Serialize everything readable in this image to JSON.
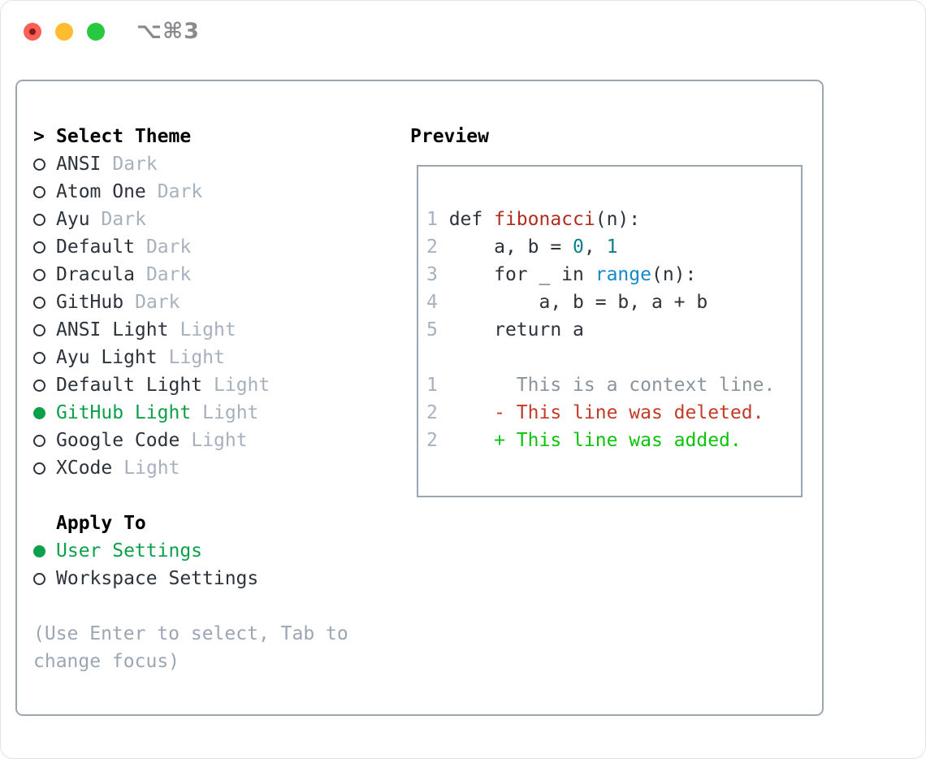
{
  "titlebar": {
    "shortcut": "⌥⌘3",
    "traffic_colors": {
      "red": "#ff5f57",
      "yellow": "#febc2e",
      "green": "#28c840"
    }
  },
  "theme_panel": {
    "title_prefix": ">",
    "title": "Select Theme",
    "themes": [
      {
        "name": "ANSI",
        "variant": "Dark",
        "selected": false
      },
      {
        "name": "Atom One",
        "variant": "Dark",
        "selected": false
      },
      {
        "name": "Ayu",
        "variant": "Dark",
        "selected": false
      },
      {
        "name": "Default",
        "variant": "Dark",
        "selected": false
      },
      {
        "name": "Dracula",
        "variant": "Dark",
        "selected": false
      },
      {
        "name": "GitHub",
        "variant": "Dark",
        "selected": false
      },
      {
        "name": "ANSI Light",
        "variant": "Light",
        "selected": false
      },
      {
        "name": "Ayu Light",
        "variant": "Light",
        "selected": false
      },
      {
        "name": "Default Light",
        "variant": "Light",
        "selected": false
      },
      {
        "name": "GitHub Light",
        "variant": "Light",
        "selected": true
      },
      {
        "name": "Google Code",
        "variant": "Light",
        "selected": false
      },
      {
        "name": "XCode",
        "variant": "Light",
        "selected": false
      }
    ],
    "apply_to": {
      "title": "Apply To",
      "options": [
        {
          "label": "User Settings",
          "selected": true
        },
        {
          "label": "Workspace Settings",
          "selected": false
        }
      ]
    },
    "help": "(Use Enter to select, Tab to\nchange focus)"
  },
  "preview": {
    "title": "Preview",
    "code_lines": [
      {
        "seg": [
          "1 ",
          "def ",
          "fibonacci",
          "(n):"
        ]
      },
      {
        "seg": [
          "2 ",
          "    a, b = ",
          "0",
          ", ",
          "1"
        ]
      },
      {
        "seg": [
          "3 ",
          "    for _ in ",
          "range",
          "(n):"
        ]
      },
      {
        "seg": [
          "4 ",
          "        a, b = b, a + b"
        ]
      },
      {
        "seg": [
          "5 ",
          "    return a"
        ]
      }
    ],
    "diff_lines": [
      {
        "seg": [
          "1",
          "       This is a context line."
        ]
      },
      {
        "seg": [
          "2",
          "     - This line was deleted."
        ]
      },
      {
        "seg": [
          "2",
          "     + This line was added."
        ]
      }
    ]
  },
  "colors": {
    "accent_green": "#0ca04a",
    "added_green": "#0cc30c",
    "deleted_red": "#c43a26",
    "function_red": "#b02d20",
    "builtin_blue": "#1389cb",
    "number_teal": "#0e7f88",
    "muted_gray": "#a7b1bd",
    "context_gray": "#8b949c",
    "text_dark": "#2d333b",
    "border_gray": "#9ca6b2"
  }
}
